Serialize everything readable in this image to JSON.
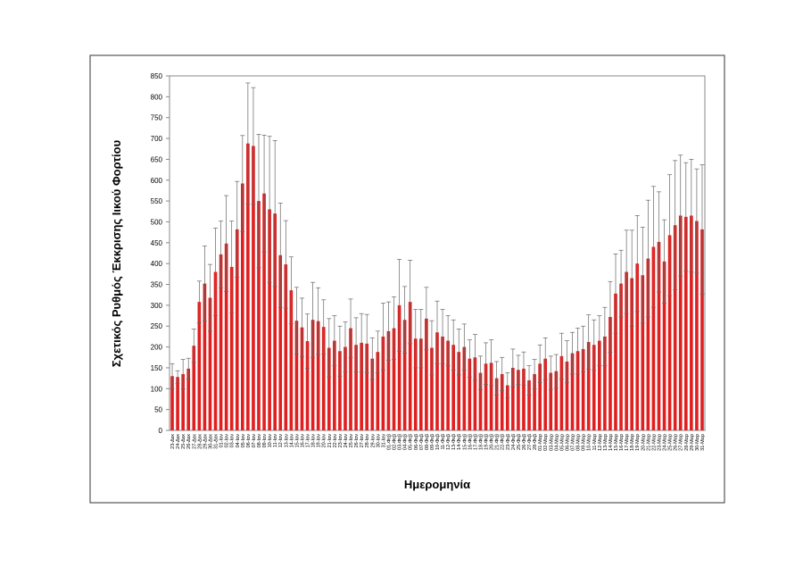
{
  "chart_data": {
    "type": "bar",
    "ylabel": "Σχετικός Ρυθμός Έκκρισης Ιικού Φορτίου",
    "xlabel": "Ημερομηνία",
    "color": "#e02020",
    "error_color": "#666666",
    "ylim": [
      0,
      850
    ],
    "yticks": [
      0,
      50,
      100,
      150,
      200,
      250,
      300,
      350,
      400,
      450,
      500,
      550,
      600,
      650,
      700,
      750,
      800,
      850
    ],
    "categories": [
      "23-Δεκ",
      "24-Δεκ",
      "25-Δεκ",
      "26-Δεκ",
      "27-Δεκ",
      "28-Δεκ",
      "29-Δεκ",
      "30-Δεκ",
      "31-Δεκ",
      "01-Ιαν",
      "02-Ιαν",
      "03-Ιαν",
      "04-Ιαν",
      "05-Ιαν",
      "06-Ιαν",
      "07-Ιαν",
      "08-Ιαν",
      "09-Ιαν",
      "10-Ιαν",
      "11-Ιαν",
      "12-Ιαν",
      "13-Ιαν",
      "14-Ιαν",
      "15-Ιαν",
      "16-Ιαν",
      "17-Ιαν",
      "18-Ιαν",
      "19-Ιαν",
      "20-Ιαν",
      "21-Ιαν",
      "22-Ιαν",
      "23-Ιαν",
      "24-Ιαν",
      "25-Ιαν",
      "26-Ιαν",
      "27-Ιαν",
      "28-Ιαν",
      "29-Ιαν",
      "30-Ιαν",
      "31-Ιαν",
      "01-Φεβ",
      "02-Φεβ",
      "03-Φεβ",
      "04-Φεβ",
      "05-Φεβ",
      "06-Φεβ",
      "07-Φεβ",
      "08-Φεβ",
      "09-Φεβ",
      "10-Φεβ",
      "11-Φεβ",
      "12-Φεβ",
      "13-Φεβ",
      "14-Φεβ",
      "15-Φεβ",
      "16-Φεβ",
      "17-Φεβ",
      "18-Φεβ",
      "19-Φεβ",
      "20-Φεβ",
      "21-Φεβ",
      "22-Φεβ",
      "23-Φεβ",
      "24-Φεβ",
      "25-Φεβ",
      "26-Φεβ",
      "27-Φεβ",
      "28-Φεβ",
      "01-Μαρ",
      "02-Μαρ",
      "03-Μαρ",
      "04-Μαρ",
      "05-Μαρ",
      "06-Μαρ",
      "07-Μαρ",
      "08-Μαρ",
      "09-Μαρ",
      "10-Μαρ",
      "11-Μαρ",
      "12-Μαρ",
      "13-Μαρ",
      "14-Μαρ",
      "15-Μαρ",
      "16-Μαρ",
      "17-Μαρ",
      "18-Μαρ",
      "19-Μαρ",
      "20-Μαρ",
      "21-Μαρ",
      "22-Μαρ",
      "23-Μαρ",
      "24-Μαρ",
      "25-Μαρ",
      "26-Μαρ",
      "27-Μαρ",
      "28-Μαρ",
      "29-Μαρ",
      "30-Μαρ",
      "31-Μαρ"
    ],
    "values": [
      130,
      128,
      135,
      148,
      203,
      308,
      352,
      318,
      380,
      422,
      448,
      392,
      482,
      592,
      688,
      682,
      550,
      568,
      530,
      520,
      420,
      398,
      336,
      263,
      247,
      214,
      265,
      262,
      248,
      198,
      215,
      190,
      200,
      245,
      205,
      210,
      208,
      172,
      188,
      225,
      238,
      245,
      300,
      265,
      308,
      220,
      220,
      268,
      198,
      235,
      225,
      215,
      205,
      188,
      200,
      172,
      175,
      138,
      160,
      162,
      125,
      135,
      108,
      150,
      145,
      148,
      120,
      135,
      160,
      172,
      138,
      142,
      178,
      165,
      185,
      190,
      195,
      212,
      205,
      215,
      225,
      272,
      328,
      352,
      380,
      365,
      400,
      372,
      412,
      440,
      452,
      405,
      468,
      492,
      515,
      512,
      515,
      502,
      482
    ],
    "errors": [
      30,
      15,
      35,
      25,
      40,
      50,
      90,
      80,
      105,
      80,
      115,
      110,
      115,
      115,
      145,
      140,
      160,
      140,
      175,
      175,
      125,
      105,
      80,
      80,
      70,
      65,
      90,
      80,
      65,
      70,
      60,
      60,
      60,
      70,
      65,
      70,
      70,
      50,
      50,
      80,
      70,
      75,
      110,
      80,
      100,
      70,
      70,
      75,
      65,
      75,
      65,
      60,
      60,
      55,
      55,
      45,
      55,
      40,
      50,
      55,
      40,
      40,
      30,
      45,
      35,
      40,
      35,
      35,
      45,
      50,
      40,
      40,
      55,
      50,
      50,
      55,
      55,
      65,
      60,
      60,
      70,
      85,
      95,
      80,
      100,
      115,
      115,
      115,
      140,
      145,
      120,
      100,
      145,
      155,
      145,
      130,
      135,
      125,
      155
    ]
  }
}
